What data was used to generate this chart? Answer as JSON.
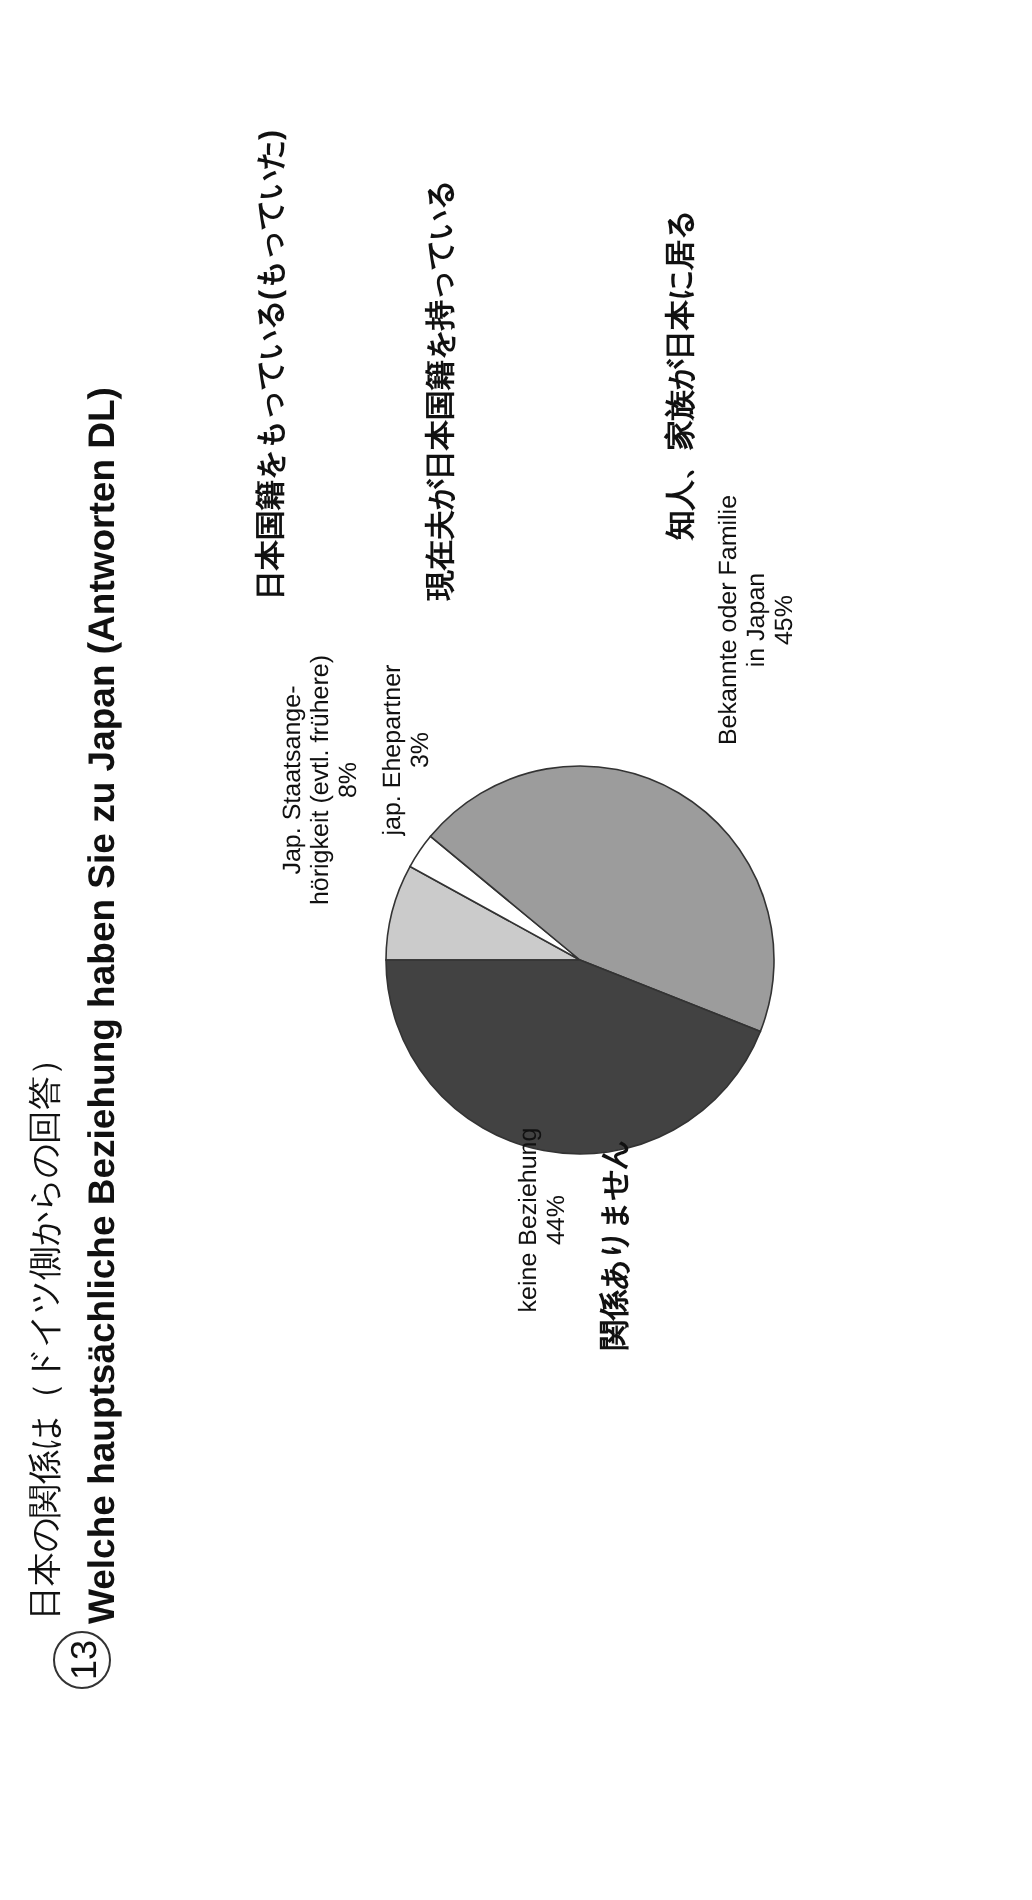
{
  "chart_data": {
    "type": "pie",
    "title": "Welche hauptsächliche Beziehung haben Sie zu Japan (Antworten DL)",
    "categories": [
      "Jap. Staatsange-\nhörigkeit (evtl. frühere)",
      "jap. Ehepartner",
      "Bekannte oder Familie\nin Japan",
      "keine Beziehung"
    ],
    "values": [
      8,
      3,
      45,
      44
    ],
    "value_labels": [
      "8%",
      "3%",
      "45%",
      "44%"
    ],
    "colors": [
      "#cbcbcb",
      "#ffffff",
      "#9c9c9c",
      "#424242"
    ],
    "annotations": [
      "13",
      "日本の関係は（ドイツ側からの回答）",
      "日本国籍をもっている(もっていた)",
      "現在夫が日本国籍を持っている",
      "知人、家族が日本に居る",
      "関係ありません"
    ]
  }
}
